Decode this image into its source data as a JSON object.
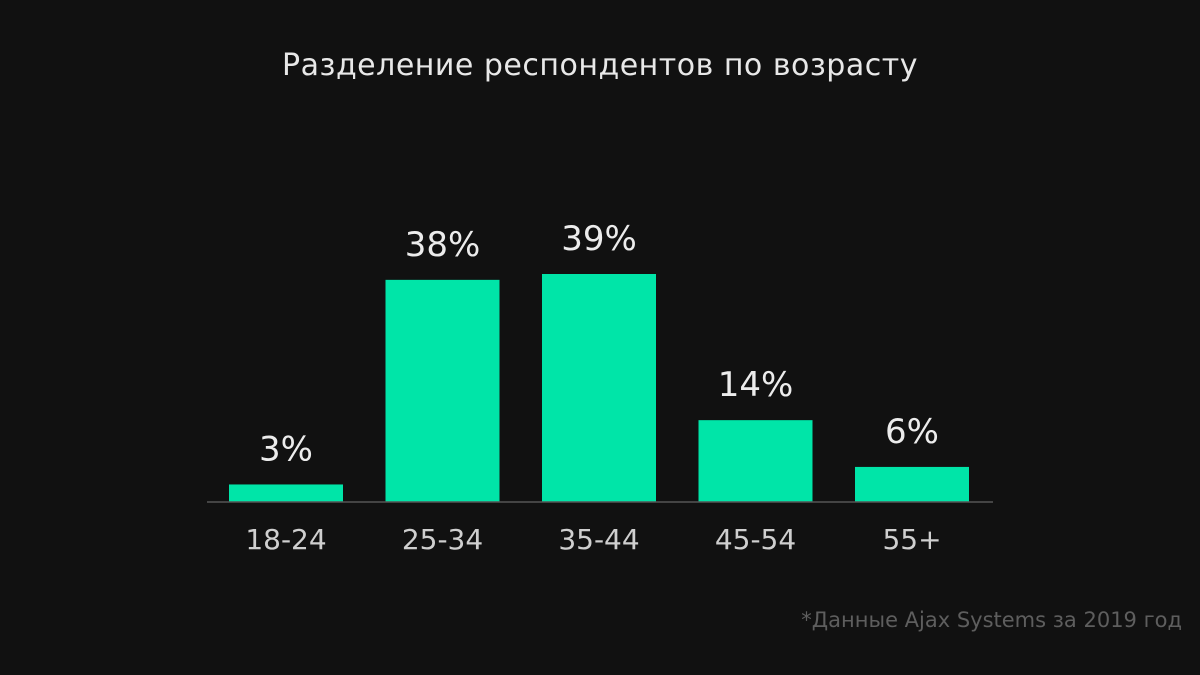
{
  "chart_data": {
    "type": "bar",
    "title": "Разделение респондентов по возрасту",
    "categories": [
      "18-24",
      "25-34",
      "35-44",
      "45-54",
      "55+"
    ],
    "values": [
      3,
      38,
      39,
      14,
      6
    ],
    "value_labels": [
      "3%",
      "38%",
      "39%",
      "14%",
      "6%"
    ],
    "ylim": [
      0,
      39
    ],
    "grid": false,
    "legend": "none",
    "xlabel": "",
    "ylabel": ""
  },
  "footnote": "*Данные Ajax Systems за 2019 год",
  "colors": {
    "background": "#111111",
    "bar": "#00e5a8",
    "baseline": "#555555",
    "text": "#e8e8e8",
    "footnote": "#5e5e5e"
  }
}
